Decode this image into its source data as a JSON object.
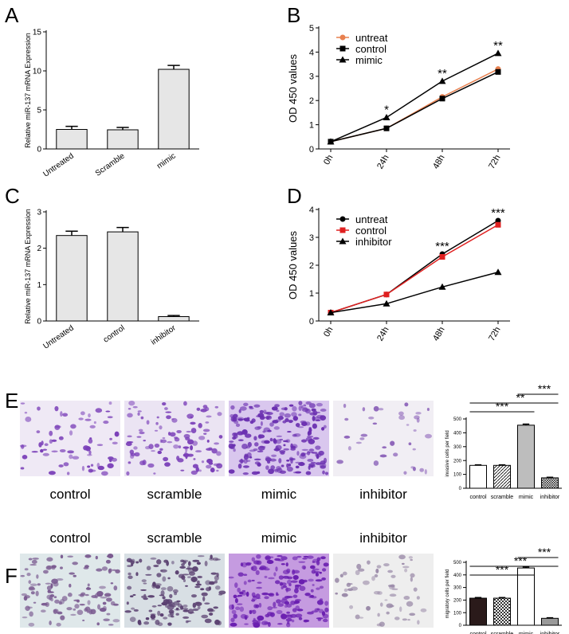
{
  "panel_labels": [
    "A",
    "B",
    "C",
    "D",
    "E",
    "F"
  ],
  "photo_rows": [
    {
      "labels": [
        "control",
        "scramble",
        "mimic",
        "inhibitor"
      ]
    },
    {
      "labels": [
        "control",
        "scramble",
        "mimic",
        "inhibitor"
      ]
    }
  ],
  "chart_data": [
    {
      "type": "bar",
      "y_label": "Relative miR-137 mRNA Expression",
      "categories": [
        "Untreated",
        "Scramble",
        "mimic"
      ],
      "values": [
        2.5,
        2.45,
        10.2
      ],
      "errors": [
        0.4,
        0.3,
        0.5
      ],
      "color": "#e6e6e6",
      "ylim": [
        0,
        15
      ],
      "yticks": [
        0,
        5,
        10,
        15
      ]
    },
    {
      "type": "line",
      "y_label": "OD 450 values",
      "categories": [
        "0h",
        "24h",
        "48h",
        "72h"
      ],
      "series": [
        {
          "name": "untreat",
          "color": "#e8804f",
          "marker": "circle",
          "values": [
            0.3,
            0.85,
            2.15,
            3.3
          ]
        },
        {
          "name": "control",
          "color": "#000000",
          "marker": "square",
          "values": [
            0.3,
            0.85,
            2.08,
            3.18
          ]
        },
        {
          "name": "mimic",
          "color": "#000000",
          "marker": "triangle",
          "values": [
            0.3,
            1.3,
            2.8,
            3.95
          ]
        }
      ],
      "ylim": [
        0,
        5
      ],
      "yticks": [
        0,
        1,
        2,
        3,
        4,
        5
      ],
      "legend": "upper left",
      "annotations": [
        "*",
        "**",
        "**"
      ]
    },
    {
      "type": "bar",
      "y_label": "Relative miR-137 mRNA Expression",
      "categories": [
        "Untreated",
        "control",
        "inhibitor"
      ],
      "values": [
        2.35,
        2.45,
        0.12
      ],
      "errors": [
        0.12,
        0.12,
        0.03
      ],
      "color": "#e6e6e6",
      "ylim": [
        0,
        3
      ],
      "yticks": [
        0,
        1,
        2,
        3
      ]
    },
    {
      "type": "line",
      "y_label": "OD 450 values",
      "categories": [
        "0h",
        "24h",
        "48h",
        "72h"
      ],
      "series": [
        {
          "name": "untreat",
          "color": "#000000",
          "marker": "circle",
          "values": [
            0.3,
            0.95,
            2.4,
            3.6
          ]
        },
        {
          "name": "control",
          "color": "#e02020",
          "marker": "square",
          "values": [
            0.3,
            0.95,
            2.3,
            3.45
          ]
        },
        {
          "name": "inhibitor",
          "color": "#000000",
          "marker": "triangle",
          "values": [
            0.3,
            0.62,
            1.22,
            1.75
          ]
        }
      ],
      "ylim": [
        0,
        4
      ],
      "yticks": [
        0,
        1,
        2,
        3,
        4
      ],
      "legend": "upper left",
      "annotations": [
        "***",
        "***"
      ]
    },
    {
      "type": "bar",
      "y_label": "invasive cells per field",
      "categories": [
        "control",
        "scramble",
        "mimic",
        "inhibitor"
      ],
      "values": [
        165,
        165,
        455,
        75
      ],
      "errors": [
        4,
        4,
        8,
        4
      ],
      "colors": [
        "#ffffff",
        "hatch",
        "#bdbdbd",
        "cross"
      ],
      "ylim": [
        0,
        500
      ],
      "yticks": [
        0,
        100,
        200,
        300,
        400,
        500
      ],
      "annotations": [
        "***",
        "**",
        "***"
      ]
    },
    {
      "type": "bar",
      "y_label": "migratory cells per field",
      "categories": [
        "control",
        "scramble",
        "mimic",
        "inhibitor"
      ],
      "values": [
        215,
        215,
        455,
        55
      ],
      "errors": [
        5,
        5,
        8,
        4
      ],
      "colors": [
        "#2a1a1a",
        "checker",
        "#ffffff",
        "#9a9a9a"
      ],
      "ylim": [
        0,
        500
      ],
      "yticks": [
        0,
        100,
        200,
        300,
        400,
        500
      ],
      "annotations": [
        "***",
        "***",
        "***"
      ]
    }
  ]
}
